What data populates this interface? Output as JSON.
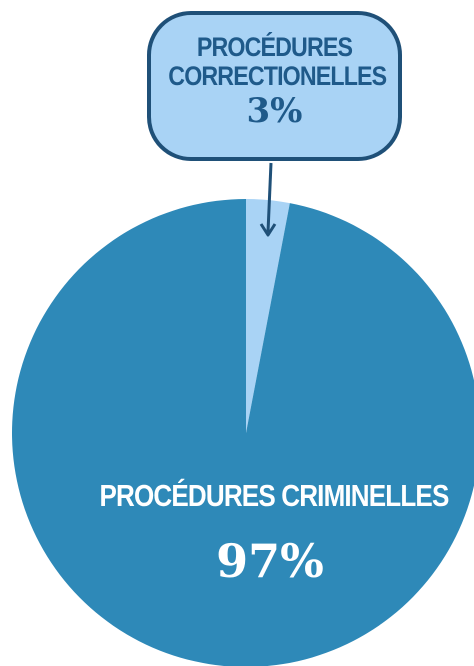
{
  "chart_data": {
    "type": "pie",
    "slices": [
      {
        "label": "PROCÉDURES CORRECTIONELLES",
        "value": 3,
        "display": "3%",
        "color": "#a9d3f5"
      },
      {
        "label": "PROCÉDURES CRIMINELLES",
        "value": 97,
        "display": "97%",
        "color": "#2e89b8"
      }
    ],
    "callout_border_color": "#1f5078",
    "arrow_color": "#1f5078"
  }
}
